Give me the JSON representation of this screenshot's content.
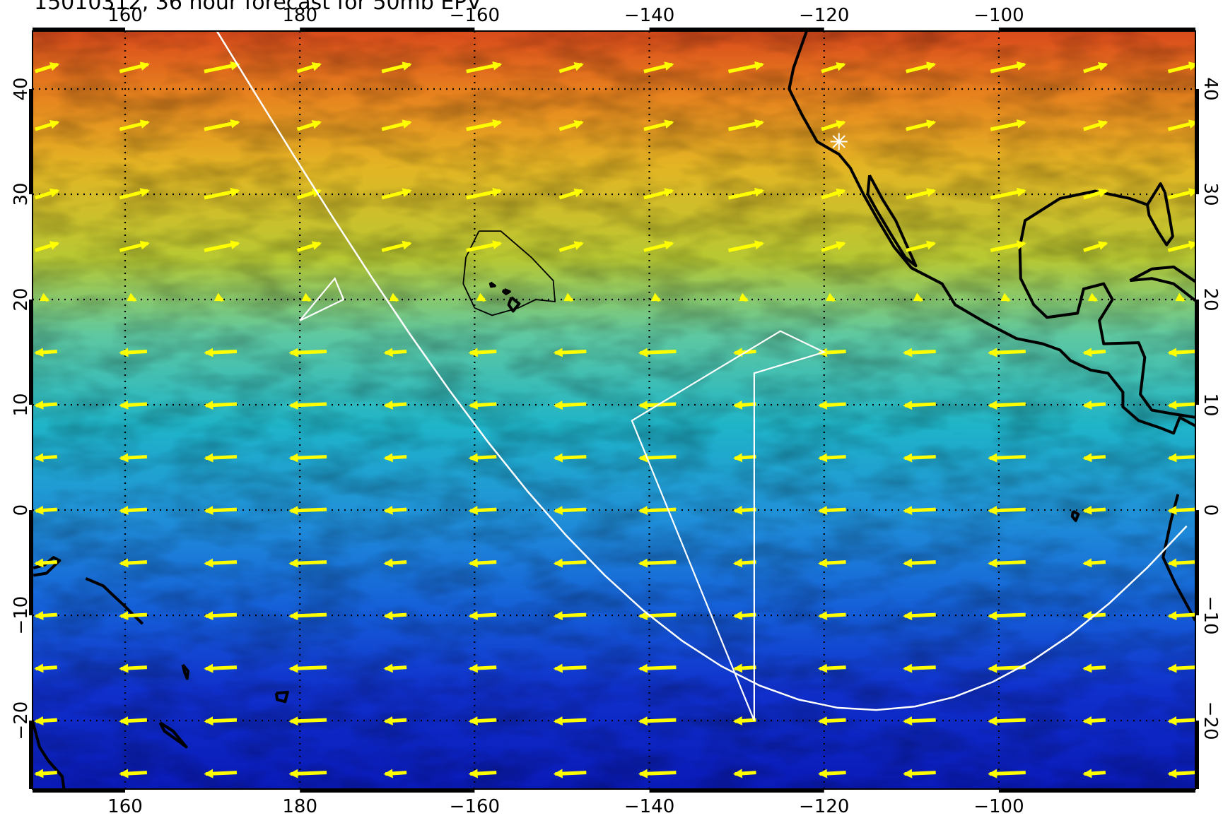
{
  "title": "15010312, 36 hour forecast for 50mb EPV",
  "map": {
    "lon_range": [
      149.4,
      282.5
    ],
    "lat_range": [
      -26.5,
      45.5
    ],
    "lon_ticks": [
      160,
      180,
      -160,
      -140,
      -120,
      -100
    ],
    "lon_tick_labels": [
      "160",
      "180",
      "−160",
      "−140",
      "−120",
      "−100"
    ],
    "lat_ticks": [
      40,
      30,
      20,
      10,
      0,
      -10,
      -20
    ],
    "lat_tick_labels": [
      "40",
      "30",
      "20",
      "10",
      "0",
      "−10",
      "−20"
    ],
    "gridlines": "dotted",
    "colors": {
      "wind_arrows": "#ffff00",
      "coastline": "#000000",
      "flight_track": "#ffffff"
    },
    "marker": {
      "name": "star-marker",
      "lon": 241.7,
      "lat": 35.0
    }
  }
}
